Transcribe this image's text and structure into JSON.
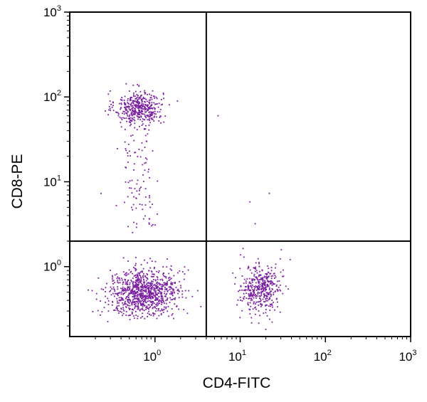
{
  "chart_data": {
    "type": "scatter",
    "subtype": "flow-cytometry-dot-plot",
    "xlabel": "CD4-FITC",
    "ylabel": "CD8-PE",
    "x_scale": "log",
    "y_scale": "log",
    "xlim": [
      0.1,
      1000
    ],
    "ylim": [
      0.15,
      1000
    ],
    "x_ticks": [
      {
        "base": "10",
        "exp": "0",
        "value": 1
      },
      {
        "base": "10",
        "exp": "1",
        "value": 10
      },
      {
        "base": "10",
        "exp": "2",
        "value": 100
      },
      {
        "base": "10",
        "exp": "3",
        "value": 1000
      }
    ],
    "y_ticks": [
      {
        "base": "10",
        "exp": "0",
        "value": 1
      },
      {
        "base": "10",
        "exp": "1",
        "value": 10
      },
      {
        "base": "10",
        "exp": "2",
        "value": 100
      },
      {
        "base": "10",
        "exp": "3",
        "value": 1000
      }
    ],
    "quadrant_gates": {
      "x": 4.0,
      "y": 2.0
    },
    "grid": false,
    "legend": "none",
    "point_color": "#7b1fa2",
    "populations": [
      {
        "id": "cd8-single-positive",
        "center": [
          0.65,
          75
        ],
        "spread_log10": [
          0.14,
          0.1
        ],
        "count": 420,
        "tail": {
          "to_y": 2.5,
          "count": 110
        }
      },
      {
        "id": "double-negative",
        "center": [
          0.75,
          0.5
        ],
        "spread_log10": [
          0.2,
          0.14
        ],
        "count": 950
      },
      {
        "id": "cd4-single-positive",
        "center": [
          17,
          0.55
        ],
        "spread_log10": [
          0.13,
          0.15
        ],
        "count": 430
      }
    ],
    "outliers": [
      [
        5.5,
        60
      ],
      [
        13,
        5.8
      ],
      [
        15,
        3.2
      ],
      [
        22,
        7.3
      ]
    ]
  }
}
